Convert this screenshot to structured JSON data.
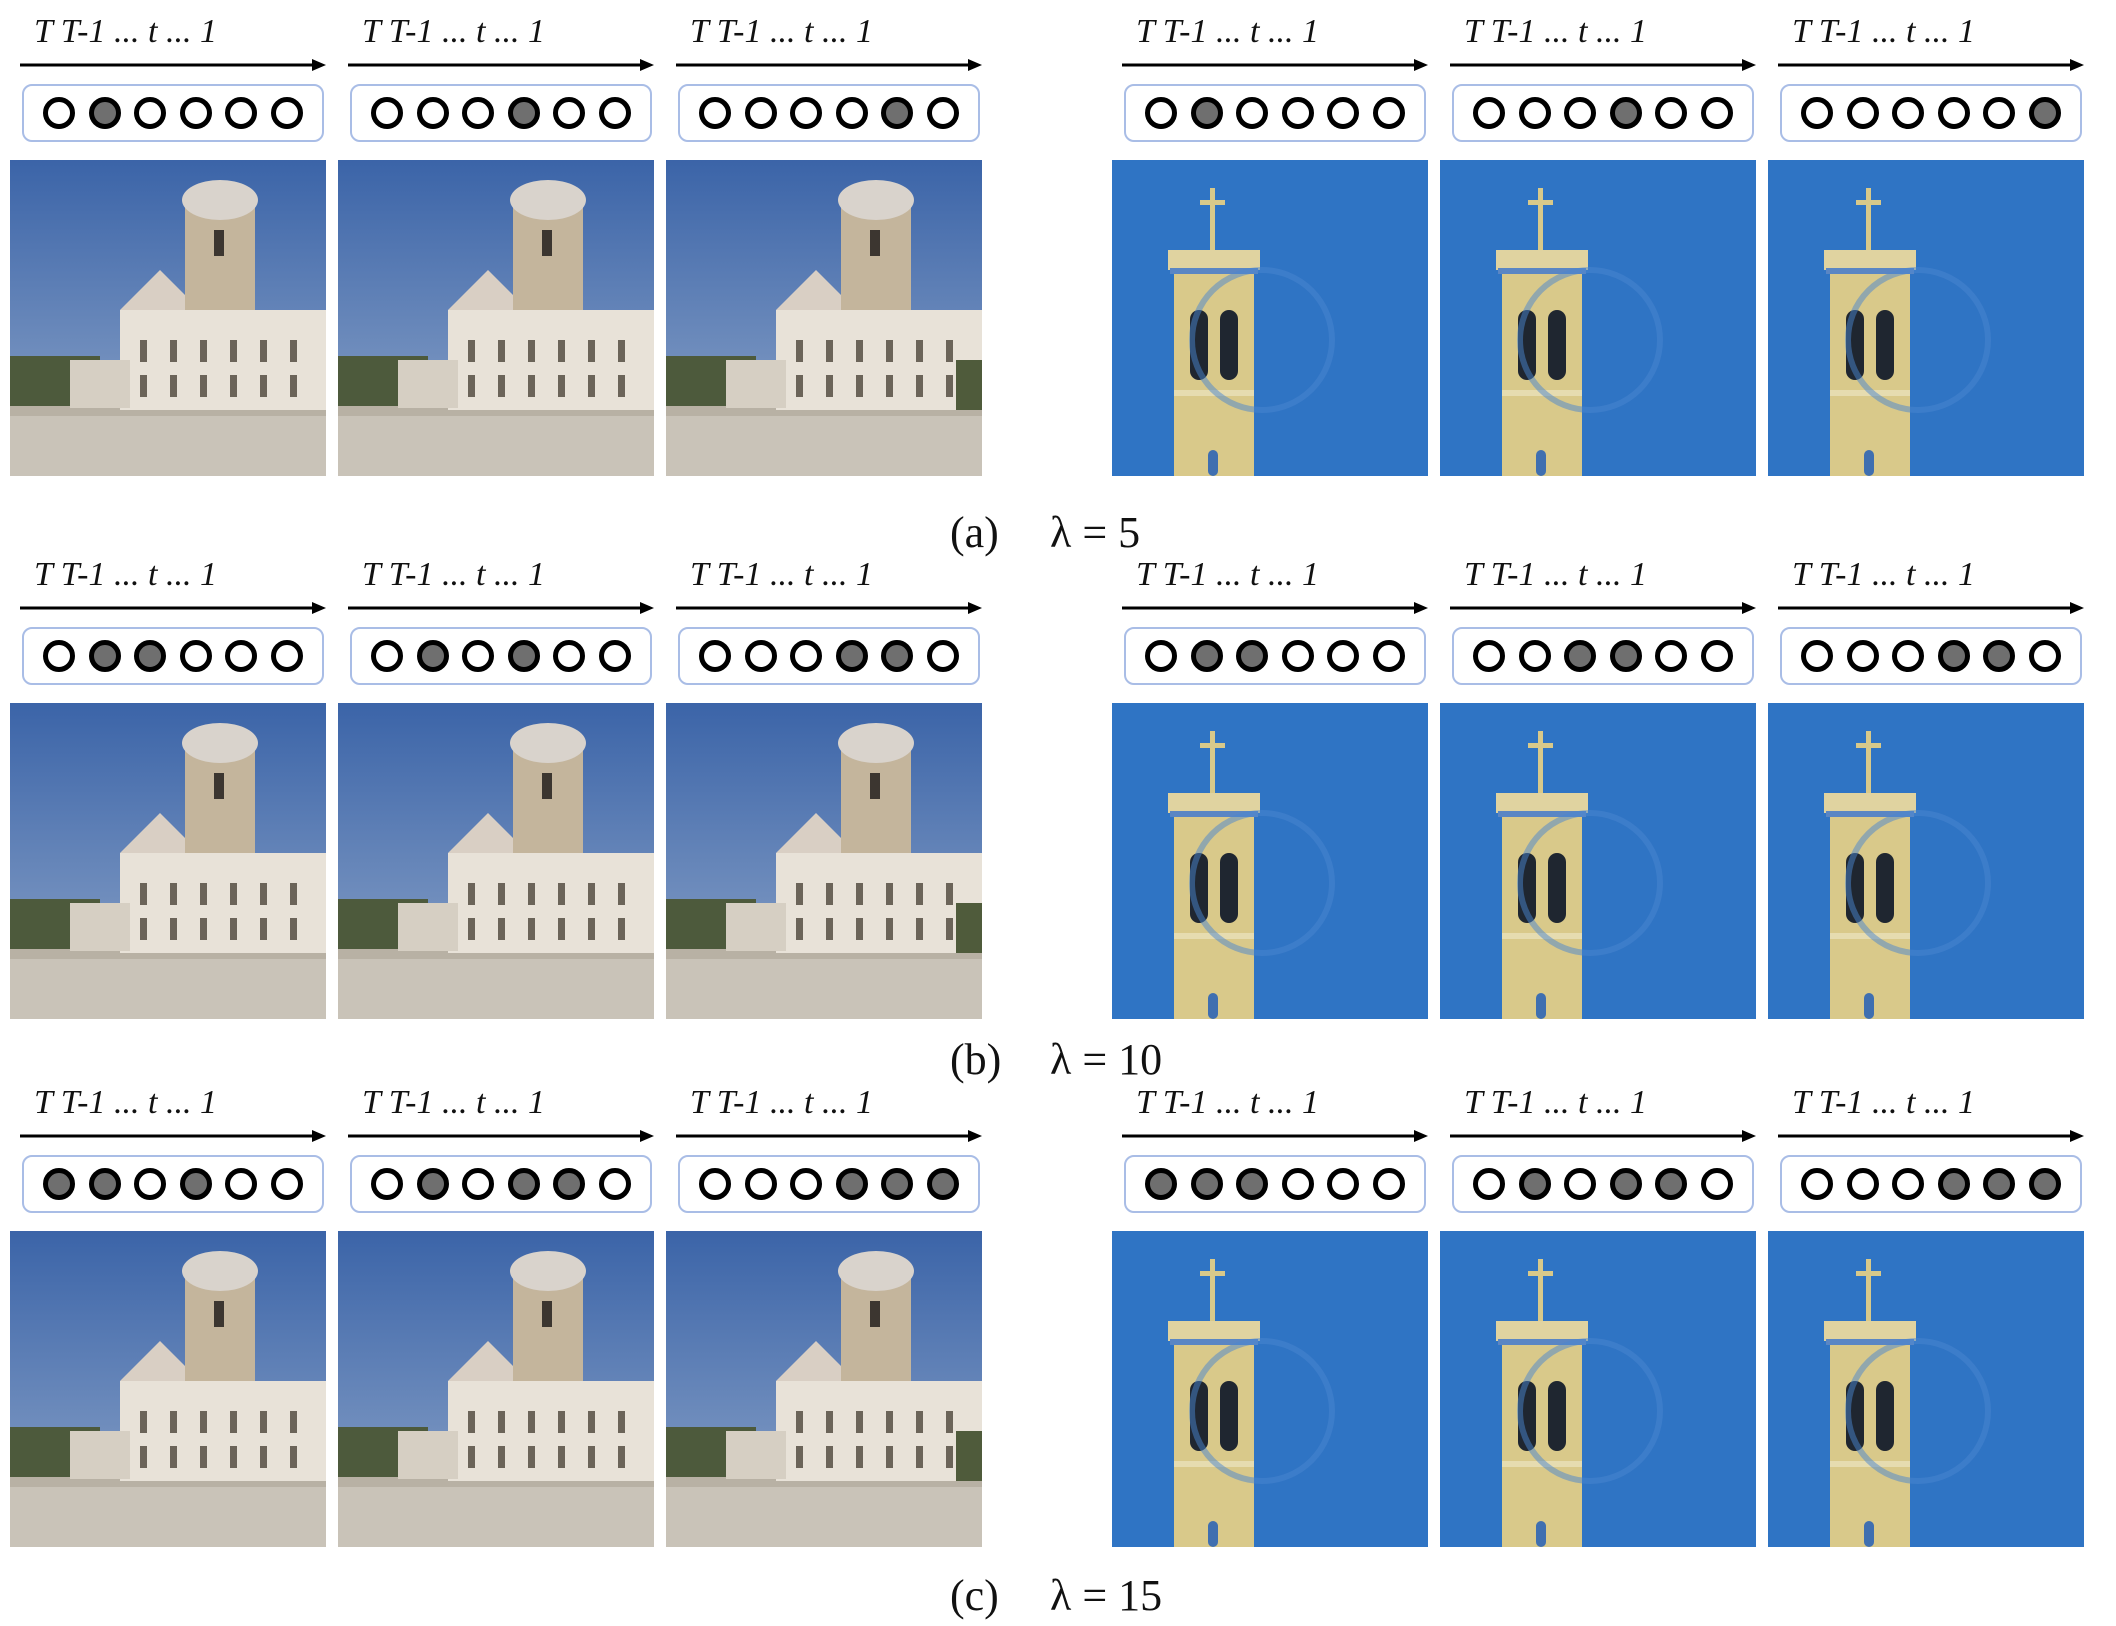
{
  "figure": {
    "axis_label": "T T-1 ... t ... 1",
    "colors": {
      "mask_border": "#a9bde6",
      "dot_on": "#6f6f6f",
      "dot_off": "#ffffff",
      "sky_church": "#3f6fb0",
      "sky_tower": "#2f74c4"
    },
    "rows": [
      {
        "caption_tag": "(a)",
        "caption_lambda": "λ = 5",
        "cells": [
          {
            "scene": "church",
            "mask": [
              0,
              1,
              0,
              0,
              0,
              0
            ]
          },
          {
            "scene": "church",
            "mask": [
              0,
              0,
              0,
              1,
              0,
              0
            ]
          },
          {
            "scene": "church",
            "mask": [
              0,
              0,
              0,
              0,
              1,
              0
            ]
          },
          {
            "scene": "tower",
            "mask": [
              0,
              1,
              0,
              0,
              0,
              0
            ]
          },
          {
            "scene": "tower",
            "mask": [
              0,
              0,
              0,
              1,
              0,
              0
            ]
          },
          {
            "scene": "tower",
            "mask": [
              0,
              0,
              0,
              0,
              0,
              1
            ]
          }
        ]
      },
      {
        "caption_tag": "(b)",
        "caption_lambda": "λ = 10",
        "cells": [
          {
            "scene": "church",
            "mask": [
              0,
              1,
              1,
              0,
              0,
              0
            ]
          },
          {
            "scene": "church",
            "mask": [
              0,
              1,
              0,
              1,
              0,
              0
            ]
          },
          {
            "scene": "church",
            "mask": [
              0,
              0,
              0,
              1,
              1,
              0
            ]
          },
          {
            "scene": "tower",
            "mask": [
              0,
              1,
              1,
              0,
              0,
              0
            ]
          },
          {
            "scene": "tower",
            "mask": [
              0,
              0,
              1,
              1,
              0,
              0
            ]
          },
          {
            "scene": "tower",
            "mask": [
              0,
              0,
              0,
              1,
              1,
              0
            ]
          }
        ]
      },
      {
        "caption_tag": "(c)",
        "caption_lambda": "λ = 15",
        "cells": [
          {
            "scene": "church",
            "mask": [
              1,
              1,
              0,
              1,
              0,
              0
            ]
          },
          {
            "scene": "church",
            "mask": [
              0,
              1,
              0,
              1,
              1,
              0
            ]
          },
          {
            "scene": "church",
            "mask": [
              0,
              0,
              0,
              1,
              1,
              1
            ]
          },
          {
            "scene": "tower",
            "mask": [
              1,
              1,
              1,
              0,
              0,
              0
            ]
          },
          {
            "scene": "tower",
            "mask": [
              0,
              1,
              0,
              1,
              1,
              0
            ]
          },
          {
            "scene": "tower",
            "mask": [
              0,
              0,
              0,
              1,
              1,
              1
            ]
          }
        ]
      }
    ]
  }
}
